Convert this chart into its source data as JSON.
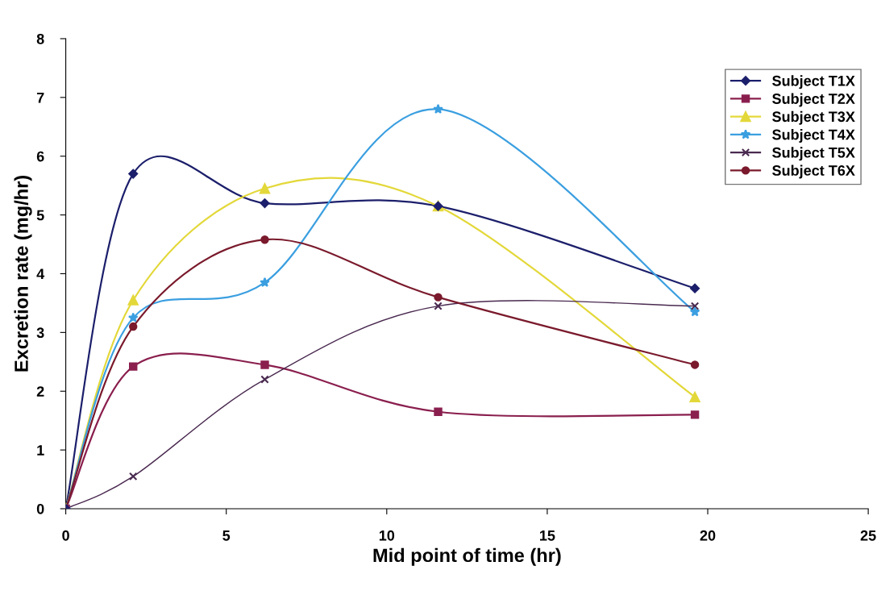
{
  "chart_data": {
    "type": "line",
    "xlabel": "Mid point of time (hr)",
    "ylabel": "Excretion rate (mg/hr)",
    "x": [
      0,
      2.1,
      6.2,
      11.6,
      19.6
    ],
    "series": [
      {
        "name": "Subject T1X",
        "color": "#1c1f6b",
        "marker": "diamond",
        "values": [
          0,
          5.7,
          5.2,
          5.15,
          3.75
        ]
      },
      {
        "name": "Subject T2X",
        "color": "#8a1f4e",
        "marker": "square",
        "values": [
          0,
          2.42,
          2.45,
          1.65,
          1.6
        ]
      },
      {
        "name": "Subject T3X",
        "color": "#e3d83a",
        "marker": "triangle",
        "values": [
          0,
          3.55,
          5.45,
          5.15,
          1.9
        ]
      },
      {
        "name": "Subject T4X",
        "color": "#3b9fe0",
        "marker": "star",
        "values": [
          0,
          3.25,
          3.85,
          6.8,
          3.35
        ]
      },
      {
        "name": "Subject T5X",
        "color": "#4a2a50",
        "marker": "cross",
        "values": [
          0,
          0.55,
          2.2,
          3.45,
          3.45
        ]
      },
      {
        "name": "Subject T6X",
        "color": "#7a1a2c",
        "marker": "circle",
        "values": [
          0,
          3.1,
          4.58,
          3.6,
          2.45
        ]
      }
    ],
    "xlim": [
      0,
      25
    ],
    "ylim": [
      0,
      8
    ],
    "xticks": [
      0,
      5,
      10,
      15,
      20,
      25
    ],
    "yticks": [
      0,
      1,
      2,
      3,
      4,
      5,
      6,
      7,
      8
    ],
    "grid": false,
    "legend": "top right",
    "line_style": "solid"
  }
}
